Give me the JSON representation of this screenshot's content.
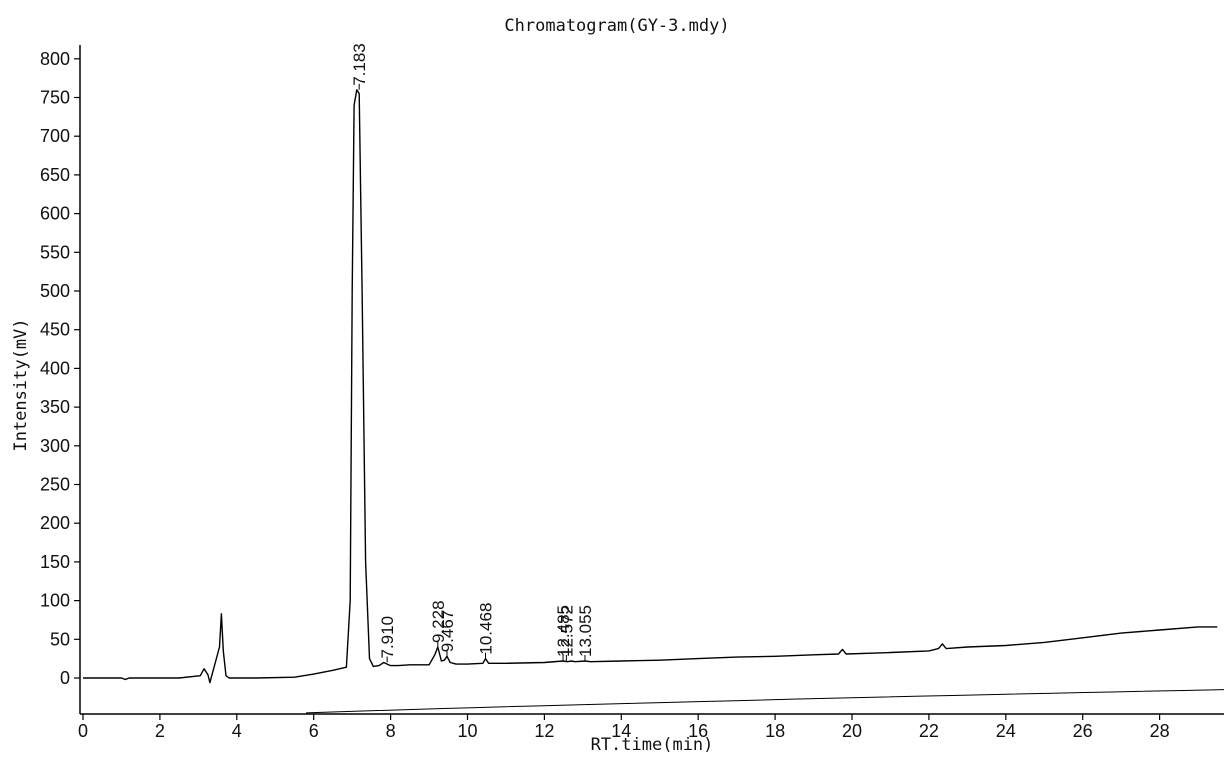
{
  "chart_data": {
    "type": "line",
    "title": "Chromatogram(GY-3.mdy)",
    "xlabel": "RT.time(min)",
    "ylabel": "Intensity(mV)",
    "xlim": [
      0,
      29.5
    ],
    "ylim": [
      -50,
      815
    ],
    "x_ticks": [
      0,
      2,
      4,
      6,
      8,
      10,
      12,
      14,
      16,
      18,
      20,
      22,
      24,
      26,
      28
    ],
    "y_ticks": [
      0,
      50,
      100,
      150,
      200,
      250,
      300,
      350,
      400,
      450,
      500,
      550,
      600,
      650,
      700,
      750,
      800
    ],
    "grid": false,
    "series": [
      {
        "color": "#000000",
        "x": [
          0,
          1,
          1.1,
          1.2,
          2.5,
          3.05,
          3.15,
          3.25,
          3.3,
          3.55,
          3.6,
          3.65,
          3.72,
          3.8,
          3.9,
          4.5,
          5.5,
          6.0,
          6.5,
          6.85,
          6.95,
          7.0,
          7.05,
          7.12,
          7.183,
          7.26,
          7.35,
          7.45,
          7.55,
          7.7,
          7.82,
          7.91,
          8.0,
          8.2,
          8.5,
          9.0,
          9.15,
          9.228,
          9.32,
          9.4,
          9.467,
          9.55,
          9.7,
          10.0,
          10.4,
          10.468,
          10.55,
          11.0,
          12.0,
          12.485,
          12.6,
          12.7,
          12.8,
          13.055,
          13.2,
          14.0,
          15.0,
          16.0,
          17.0,
          18.0,
          19.0,
          19.65,
          19.75,
          19.85,
          20.5,
          21.0,
          22.0,
          22.25,
          22.35,
          22.45,
          23.0,
          24.0,
          25.0,
          26.0,
          27.0,
          28.0,
          29.0,
          29.5
        ],
        "y": [
          0,
          0,
          -2,
          0,
          0,
          3,
          12,
          4,
          -6,
          40,
          83,
          35,
          3,
          0,
          0,
          0,
          1,
          5,
          10,
          14,
          100,
          500,
          740,
          760,
          755,
          500,
          150,
          25,
          15,
          16,
          20,
          18,
          16,
          16,
          17,
          17,
          30,
          40,
          22,
          23,
          28,
          20,
          18,
          18,
          19,
          25,
          19,
          19,
          20,
          22,
          21,
          22,
          21,
          22,
          21,
          22,
          23,
          25,
          27,
          28,
          30,
          31,
          37,
          31,
          32,
          33,
          35,
          38,
          44,
          38,
          40,
          42,
          46,
          52,
          58,
          62,
          66,
          66
        ]
      }
    ],
    "peak_labels": [
      "7.183",
      "7.910",
      "9.228",
      "9.467",
      "10.468",
      "12.485",
      "12.572",
      "13.055"
    ],
    "peak_positions": [
      {
        "x": 7.183,
        "y": 760
      },
      {
        "x": 7.91,
        "y": 20
      },
      {
        "x": 9.228,
        "y": 40
      },
      {
        "x": 9.467,
        "y": 28
      },
      {
        "x": 10.468,
        "y": 25
      },
      {
        "x": 12.485,
        "y": 22
      },
      {
        "x": 12.572,
        "y": 22
      },
      {
        "x": 13.055,
        "y": 22
      }
    ]
  }
}
